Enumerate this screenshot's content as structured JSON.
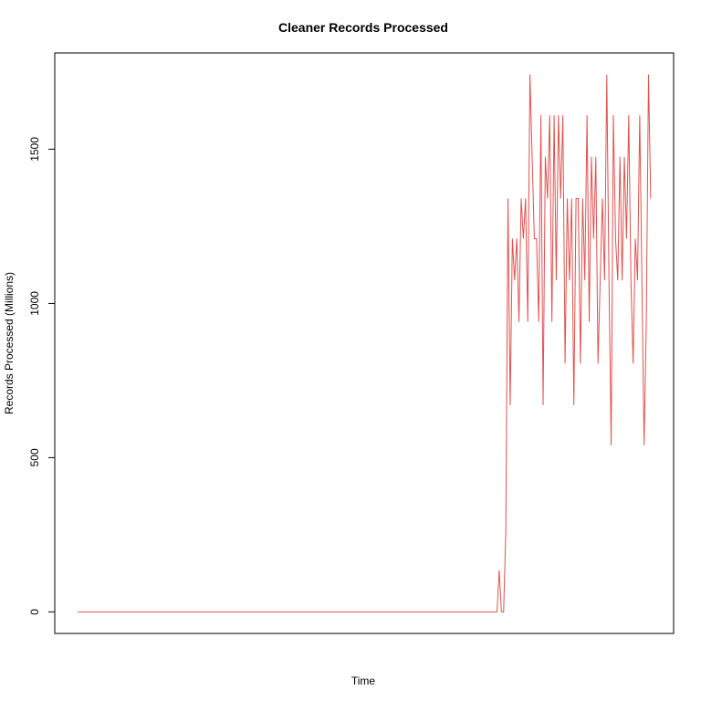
{
  "chart_data": {
    "type": "line",
    "title": "Cleaner Records Processed",
    "x_label": "Time",
    "y_label": "Records Processed (Millions)",
    "color": "#e0524f",
    "ylim": [
      -70,
      1812
    ],
    "yticks": [
      0,
      500,
      1000,
      1500
    ],
    "values": [
      0,
      0,
      0,
      0,
      0,
      0,
      0,
      0,
      0,
      0,
      0,
      0,
      0,
      0,
      0,
      0,
      0,
      0,
      0,
      0,
      0,
      0,
      0,
      0,
      0,
      0,
      0,
      0,
      0,
      0,
      0,
      0,
      0,
      0,
      0,
      0,
      0,
      0,
      0,
      0,
      0,
      0,
      0,
      0,
      0,
      0,
      0,
      0,
      0,
      0,
      0,
      0,
      0,
      0,
      0,
      0,
      0,
      0,
      0,
      0,
      0,
      0,
      0,
      0,
      0,
      0,
      0,
      0,
      0,
      0,
      0,
      0,
      0,
      0,
      0,
      0,
      0,
      0,
      0,
      0,
      0,
      0,
      0,
      0,
      0,
      0,
      0,
      0,
      0,
      0,
      0,
      0,
      0,
      0,
      0,
      0,
      0,
      0,
      0,
      0,
      0,
      0,
      0,
      0,
      0,
      0,
      0,
      0,
      0,
      0,
      0,
      0,
      0,
      0,
      0,
      0,
      0,
      0,
      0,
      0,
      0,
      0,
      0,
      0,
      0,
      0,
      0,
      0,
      0,
      0,
      0,
      0,
      0,
      0,
      0,
      0,
      0,
      0,
      0,
      0,
      0,
      0,
      0,
      0,
      0,
      0,
      0,
      0,
      0,
      0,
      0,
      0,
      0,
      0,
      0,
      0,
      0,
      0,
      0,
      0,
      0,
      0,
      0,
      0,
      0,
      0,
      0,
      0,
      0,
      0,
      0,
      0,
      0,
      0,
      0,
      0,
      0,
      0,
      0,
      0,
      0,
      0,
      0,
      0,
      0,
      0,
      0,
      0,
      0,
      0,
      0,
      0,
      135,
      0,
      0,
      260,
      1340,
      670,
      1210,
      1075,
      1210,
      940,
      1340,
      1210,
      1340,
      940,
      1742,
      1475,
      1210,
      1210,
      940,
      1610,
      670,
      1475,
      1340,
      1610,
      940,
      1610,
      1075,
      1610,
      1340,
      1610,
      805,
      1340,
      1075,
      1340,
      670,
      1340,
      1340,
      805,
      1340,
      1075,
      1610,
      940,
      1475,
      1210,
      1475,
      805,
      1075,
      1340,
      1075,
      1742,
      1075,
      540,
      1610,
      1210,
      1075,
      1475,
      1075,
      1475,
      1210,
      1610,
      1075,
      805,
      1210,
      1075,
      1610,
      1075,
      540,
      940,
      1742,
      1340
    ]
  }
}
